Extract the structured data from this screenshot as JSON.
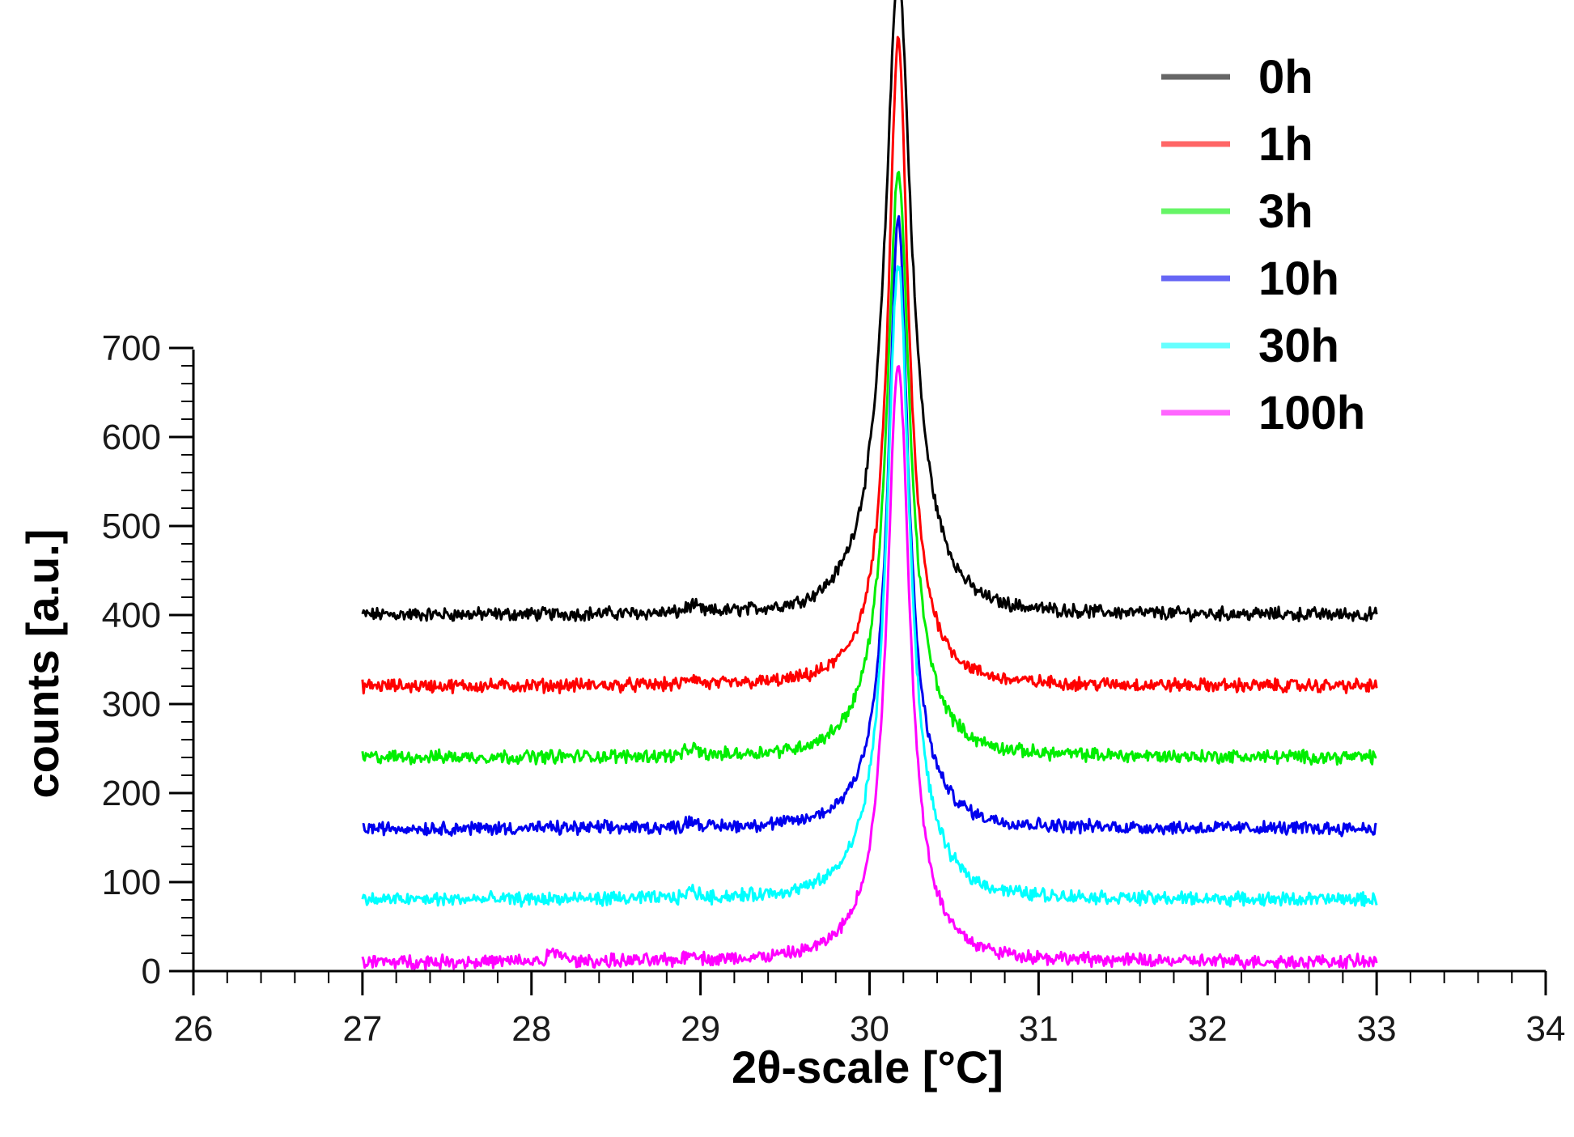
{
  "chart_data": {
    "type": "line",
    "title": "",
    "xlabel": "2θ-scale [°C]",
    "ylabel": "counts [a.u.]",
    "xlim": [
      26,
      34
    ],
    "ylim": [
      0,
      700
    ],
    "xticks": [
      "26",
      "27",
      "28",
      "29",
      "30",
      "31",
      "32",
      "33",
      "34"
    ],
    "yticks": [
      "0",
      "100",
      "200",
      "300",
      "400",
      "500",
      "600",
      "700"
    ],
    "legend_position": "top-right",
    "peak_center": 30.17,
    "series": [
      {
        "name": "0h",
        "color": "#000000",
        "baseline": 400,
        "peak_top": 1060,
        "peak_width": 0.09,
        "shoulder": 60
      },
      {
        "name": "1h",
        "color": "#ff0000",
        "baseline": 320,
        "peak_top": 1015,
        "peak_width": 0.07,
        "shoulder": 30
      },
      {
        "name": "3h",
        "color": "#00ee00",
        "baseline": 240,
        "peak_top": 865,
        "peak_width": 0.08,
        "shoulder": 30
      },
      {
        "name": "10h",
        "color": "#0000ee",
        "baseline": 160,
        "peak_top": 815,
        "peak_width": 0.07,
        "shoulder": 30
      },
      {
        "name": "30h",
        "color": "#00ffff",
        "baseline": 80,
        "peak_top": 765,
        "peak_width": 0.08,
        "shoulder": 30
      },
      {
        "name": "100h",
        "color": "#ff00ff",
        "baseline": 10,
        "peak_top": 665,
        "peak_width": 0.08,
        "shoulder": 20
      }
    ]
  }
}
